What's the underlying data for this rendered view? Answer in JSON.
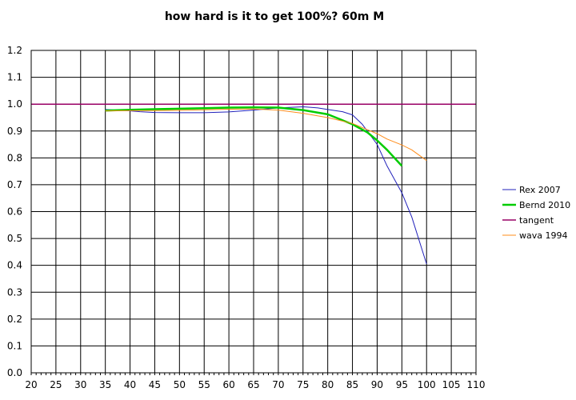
{
  "chart_data": {
    "type": "line",
    "title": "how hard is it to get 100%? 60m M",
    "xlabel": "",
    "ylabel": "",
    "xlim": [
      20,
      110
    ],
    "ylim": [
      0.0,
      1.2
    ],
    "x_ticks": [
      20,
      25,
      30,
      35,
      40,
      45,
      50,
      55,
      60,
      65,
      70,
      75,
      80,
      85,
      90,
      95,
      100,
      105,
      110
    ],
    "y_ticks": [
      "0.0",
      "0.1",
      "0.2",
      "0.3",
      "0.4",
      "0.5",
      "0.6",
      "0.7",
      "0.8",
      "0.9",
      "1.0",
      "1.1",
      "1.2"
    ],
    "grid": true,
    "legend_position": "right",
    "series": [
      {
        "name": "Rex 2007",
        "color": "#2222bb",
        "width": 1,
        "points": [
          [
            35,
            0.98
          ],
          [
            40,
            0.975
          ],
          [
            42,
            0.972
          ],
          [
            45,
            0.969
          ],
          [
            50,
            0.968
          ],
          [
            55,
            0.968
          ],
          [
            60,
            0.971
          ],
          [
            65,
            0.978
          ],
          [
            70,
            0.986
          ],
          [
            75,
            0.99
          ],
          [
            78,
            0.986
          ],
          [
            80,
            0.98
          ],
          [
            83,
            0.972
          ],
          [
            85,
            0.96
          ],
          [
            87,
            0.925
          ],
          [
            90,
            0.85
          ],
          [
            92,
            0.77
          ],
          [
            95,
            0.67
          ],
          [
            97,
            0.58
          ],
          [
            100,
            0.405
          ]
        ]
      },
      {
        "name": "Bernd 2010",
        "color": "#00cc00",
        "width": 2.5,
        "points": [
          [
            35,
            0.976
          ],
          [
            40,
            0.979
          ],
          [
            45,
            0.981
          ],
          [
            50,
            0.983
          ],
          [
            55,
            0.985
          ],
          [
            60,
            0.987
          ],
          [
            65,
            0.988
          ],
          [
            70,
            0.987
          ],
          [
            75,
            0.978
          ],
          [
            80,
            0.962
          ],
          [
            85,
            0.925
          ],
          [
            88,
            0.895
          ],
          [
            90,
            0.865
          ],
          [
            92,
            0.83
          ],
          [
            95,
            0.77
          ]
        ]
      },
      {
        "name": "tangent",
        "color": "#990066",
        "width": 1.5,
        "points": [
          [
            20,
            1.0
          ],
          [
            110,
            1.0
          ]
        ]
      },
      {
        "name": "wava 1994",
        "color": "#ff8c1a",
        "width": 1,
        "points": [
          [
            35,
            0.975
          ],
          [
            40,
            0.976
          ],
          [
            45,
            0.976
          ],
          [
            50,
            0.977
          ],
          [
            55,
            0.979
          ],
          [
            60,
            0.981
          ],
          [
            65,
            0.982
          ],
          [
            70,
            0.978
          ],
          [
            75,
            0.966
          ],
          [
            80,
            0.95
          ],
          [
            85,
            0.928
          ],
          [
            88,
            0.905
          ],
          [
            90,
            0.89
          ],
          [
            92,
            0.87
          ],
          [
            95,
            0.848
          ],
          [
            97,
            0.83
          ],
          [
            100,
            0.79
          ]
        ]
      }
    ]
  }
}
